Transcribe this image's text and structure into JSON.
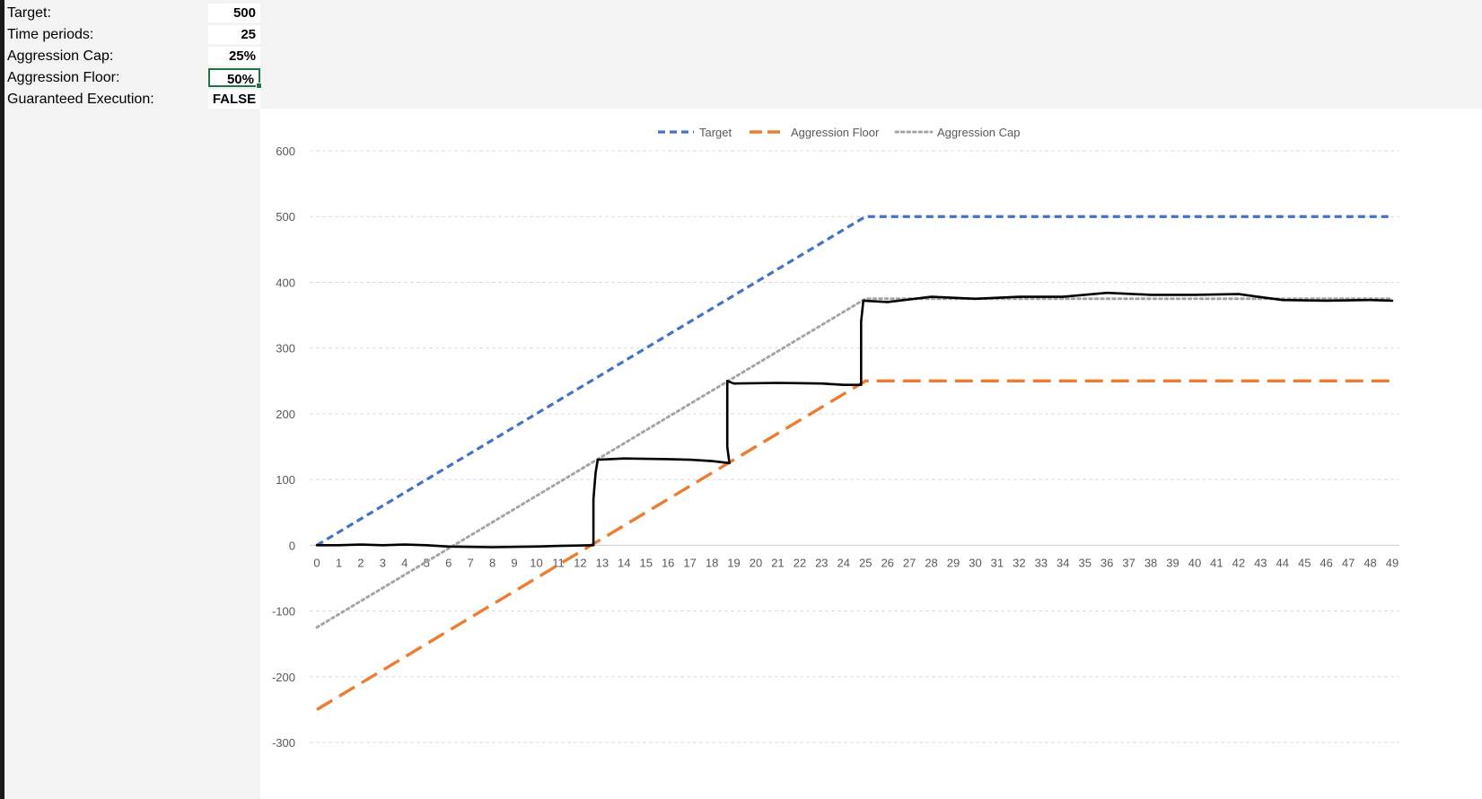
{
  "params": [
    {
      "label": "Target:",
      "value": "500"
    },
    {
      "label": "Time periods:",
      "value": "25"
    },
    {
      "label": "Aggression Cap:",
      "value": "25%"
    },
    {
      "label": "Aggression Floor:",
      "value": "50%"
    },
    {
      "label": "Guaranteed Execution:",
      "value": "FALSE"
    }
  ],
  "colors": {
    "target": "#4472C4",
    "floor": "#ED7D31",
    "cap": "#A5A5A5",
    "selection": "#217346",
    "handdrawn": "#000000"
  },
  "chart_data": {
    "type": "line",
    "title": "",
    "xlabel": "",
    "ylabel": "",
    "x": [
      0,
      1,
      2,
      3,
      4,
      5,
      6,
      7,
      8,
      9,
      10,
      11,
      12,
      13,
      14,
      15,
      16,
      17,
      18,
      19,
      20,
      21,
      22,
      23,
      24,
      25,
      26,
      27,
      28,
      29,
      30,
      31,
      32,
      33,
      34,
      35,
      36,
      37,
      38,
      39,
      40,
      41,
      42,
      43,
      44,
      45,
      46,
      47,
      48,
      49
    ],
    "xlim": [
      0,
      49
    ],
    "ylim": [
      -300,
      600
    ],
    "yticks": [
      -300,
      -200,
      -100,
      0,
      100,
      200,
      300,
      400,
      500,
      600
    ],
    "grid": true,
    "legend_position": "top-center",
    "series": [
      {
        "name": "Target",
        "style": "dashed",
        "values": [
          0,
          20,
          40,
          60,
          80,
          100,
          120,
          140,
          160,
          180,
          200,
          220,
          240,
          260,
          280,
          300,
          320,
          340,
          360,
          380,
          400,
          420,
          440,
          460,
          480,
          500,
          500,
          500,
          500,
          500,
          500,
          500,
          500,
          500,
          500,
          500,
          500,
          500,
          500,
          500,
          500,
          500,
          500,
          500,
          500,
          500,
          500,
          500,
          500,
          500
        ]
      },
      {
        "name": "Aggression Floor",
        "style": "long-dashed",
        "values": [
          -250,
          -230,
          -210,
          -190,
          -170,
          -150,
          -130,
          -110,
          -90,
          -70,
          -50,
          -30,
          -10,
          10,
          30,
          50,
          70,
          90,
          110,
          130,
          150,
          170,
          190,
          210,
          230,
          250,
          250,
          250,
          250,
          250,
          250,
          250,
          250,
          250,
          250,
          250,
          250,
          250,
          250,
          250,
          250,
          250,
          250,
          250,
          250,
          250,
          250,
          250,
          250,
          250
        ]
      },
      {
        "name": "Aggression Cap",
        "style": "dotted",
        "values": [
          -125,
          -105,
          -85,
          -65,
          -45,
          -25,
          -5,
          15,
          35,
          55,
          75,
          95,
          115,
          135,
          155,
          175,
          195,
          215,
          235,
          255,
          275,
          295,
          315,
          335,
          355,
          375,
          375,
          375,
          375,
          375,
          375,
          375,
          375,
          375,
          375,
          375,
          375,
          375,
          375,
          375,
          375,
          375,
          375,
          375,
          375,
          375,
          375,
          375,
          375,
          375
        ]
      }
    ],
    "annotation": {
      "type": "hand-drawn-path",
      "points": [
        [
          0,
          0
        ],
        [
          1,
          0
        ],
        [
          2,
          1
        ],
        [
          3,
          0
        ],
        [
          4,
          1
        ],
        [
          5,
          0
        ],
        [
          6,
          -2
        ],
        [
          8,
          -3
        ],
        [
          10,
          -2
        ],
        [
          11,
          -1
        ],
        [
          12.6,
          0
        ],
        [
          12.6,
          70
        ],
        [
          12.7,
          110
        ],
        [
          12.8,
          130
        ],
        [
          14,
          132
        ],
        [
          16,
          131
        ],
        [
          17,
          130
        ],
        [
          18,
          128
        ],
        [
          18.8,
          125
        ],
        [
          18.7,
          150
        ],
        [
          18.7,
          250
        ],
        [
          19,
          246
        ],
        [
          21,
          247
        ],
        [
          23,
          246
        ],
        [
          24,
          244
        ],
        [
          24.8,
          244
        ],
        [
          24.8,
          280
        ],
        [
          24.8,
          340
        ],
        [
          24.9,
          372
        ],
        [
          26,
          370
        ],
        [
          28,
          378
        ],
        [
          30,
          375
        ],
        [
          32,
          378
        ],
        [
          34,
          378
        ],
        [
          36,
          384
        ],
        [
          38,
          381
        ],
        [
          40,
          381
        ],
        [
          42,
          382
        ],
        [
          44,
          373
        ],
        [
          46,
          372
        ],
        [
          48,
          373
        ],
        [
          49,
          372
        ]
      ]
    }
  }
}
